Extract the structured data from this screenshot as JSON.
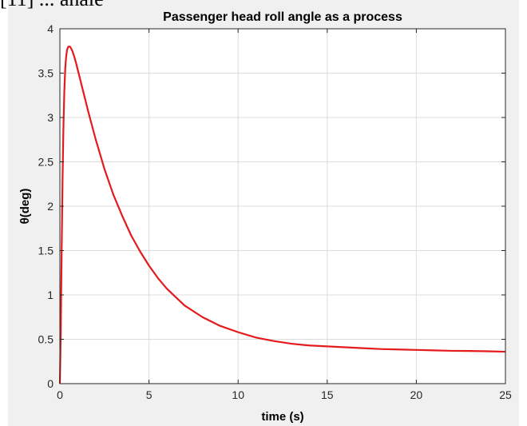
{
  "caption_fragment": "[11] ... anale",
  "chart_data": {
    "type": "line",
    "title": "Passenger head roll angle as a process",
    "xlabel": "time (s)",
    "ylabel": "θ(deg)",
    "xlim": [
      0,
      25
    ],
    "ylim": [
      0,
      4
    ],
    "xticks": [
      "0",
      "5",
      "10",
      "15",
      "20",
      "25"
    ],
    "yticks": [
      "0",
      "0.5",
      "1",
      "1.5",
      "2",
      "2.5",
      "3",
      "3.5",
      "4"
    ],
    "grid": true,
    "series": [
      {
        "color": "#e41a1c",
        "x": [
          0,
          0.05,
          0.1,
          0.15,
          0.2,
          0.25,
          0.3,
          0.35,
          0.4,
          0.45,
          0.5,
          0.55,
          0.6,
          0.7,
          0.8,
          0.9,
          1.0,
          1.2,
          1.4,
          1.6,
          1.8,
          2.0,
          2.5,
          3.0,
          3.5,
          4.0,
          4.5,
          5.0,
          5.5,
          6.0,
          7.0,
          8.0,
          9.0,
          10.0,
          11.0,
          12.0,
          13.0,
          14.0,
          15.0,
          16.0,
          17.0,
          18.0,
          19.0,
          20.0,
          21.0,
          22.0,
          23.0,
          24.0,
          25.0
        ],
        "y": [
          0,
          0.6,
          1.5,
          2.3,
          2.9,
          3.3,
          3.55,
          3.68,
          3.76,
          3.79,
          3.8,
          3.8,
          3.79,
          3.75,
          3.69,
          3.62,
          3.54,
          3.38,
          3.22,
          3.06,
          2.91,
          2.76,
          2.42,
          2.13,
          1.89,
          1.67,
          1.49,
          1.33,
          1.19,
          1.07,
          0.88,
          0.75,
          0.65,
          0.58,
          0.52,
          0.48,
          0.45,
          0.43,
          0.42,
          0.41,
          0.4,
          0.39,
          0.385,
          0.38,
          0.375,
          0.37,
          0.368,
          0.365,
          0.36
        ]
      }
    ]
  }
}
